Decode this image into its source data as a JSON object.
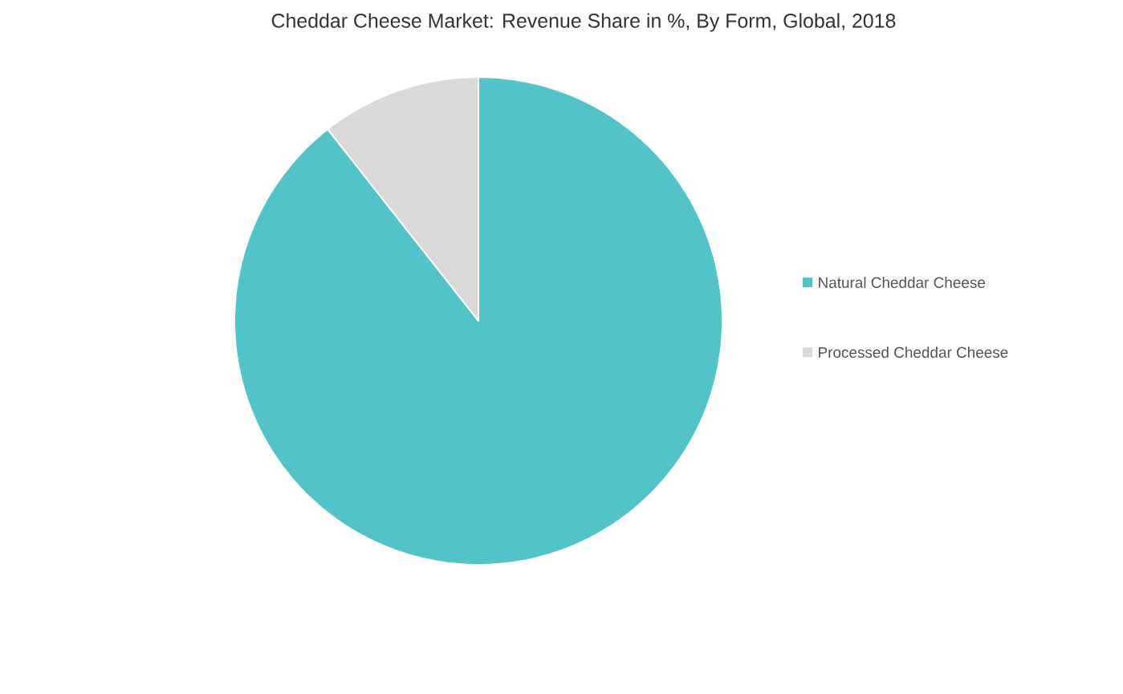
{
  "chart_data": {
    "type": "pie",
    "title": "Cheddar Cheese Market: Revenue Share in %, By Form, Global, 2018",
    "categories": [
      "Natural Cheddar Cheese",
      "Processed Cheddar Cheese"
    ],
    "values": [
      89.4,
      10.6
    ],
    "colors": [
      "#52c3c8",
      "#d9d9d9"
    ],
    "legend": "right"
  }
}
